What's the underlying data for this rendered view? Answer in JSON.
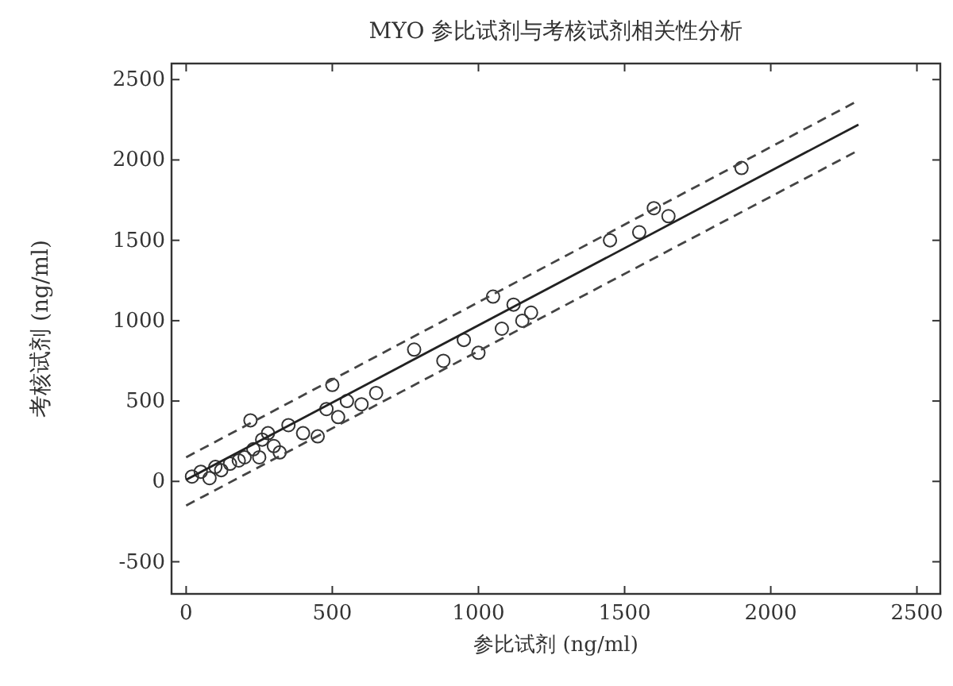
{
  "chart_data": {
    "type": "scatter",
    "title": "MYO 参比试剂与考核试剂相关性分析",
    "xlabel": "参比试剂 (ng/ml)",
    "ylabel": "考核试剂 (ng/ml)",
    "xlim": [
      -50,
      2580
    ],
    "ylim": [
      -700,
      2600
    ],
    "xticks": [
      0,
      500,
      1000,
      1500,
      2000,
      2500
    ],
    "yticks": [
      -500,
      0,
      500,
      1000,
      1500,
      2000,
      2500
    ],
    "grid": false,
    "series": [
      {
        "type": "scatter",
        "marker": "circle",
        "color": "#333333",
        "x": [
          20,
          50,
          80,
          100,
          120,
          150,
          180,
          200,
          220,
          230,
          250,
          260,
          280,
          300,
          320,
          350,
          400,
          450,
          480,
          500,
          520,
          550,
          600,
          650,
          780,
          880,
          950,
          1000,
          1050,
          1080,
          1120,
          1150,
          1180,
          1450,
          1550,
          1600,
          1650,
          1900
        ],
        "values": [
          30,
          60,
          20,
          90,
          70,
          110,
          130,
          150,
          380,
          200,
          150,
          260,
          300,
          220,
          180,
          350,
          300,
          280,
          450,
          600,
          400,
          500,
          480,
          550,
          820,
          750,
          880,
          800,
          1150,
          950,
          1100,
          1000,
          1050,
          1500,
          1550,
          1700,
          1650,
          1950
        ]
      },
      {
        "type": "line",
        "line_style": "solid",
        "color": "#222222",
        "x": [
          0,
          2300
        ],
        "values": [
          10,
          2220
        ]
      },
      {
        "type": "line",
        "line_style": "dashed",
        "color": "#444444",
        "x": [
          0,
          2300
        ],
        "values": [
          150,
          2370
        ]
      },
      {
        "type": "line",
        "line_style": "dashed",
        "color": "#444444",
        "x": [
          0,
          2300
        ],
        "values": [
          -150,
          2060
        ]
      }
    ]
  }
}
